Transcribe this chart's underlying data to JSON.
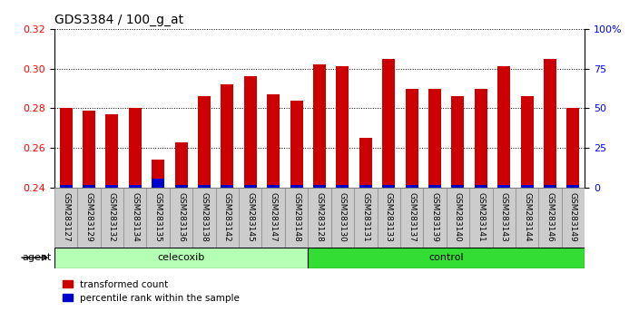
{
  "title": "GDS3384 / 100_g_at",
  "samples": [
    "GSM283127",
    "GSM283129",
    "GSM283132",
    "GSM283134",
    "GSM283135",
    "GSM283136",
    "GSM283138",
    "GSM283142",
    "GSM283145",
    "GSM283147",
    "GSM283148",
    "GSM283128",
    "GSM283130",
    "GSM283131",
    "GSM283133",
    "GSM283137",
    "GSM283139",
    "GSM283140",
    "GSM283141",
    "GSM283143",
    "GSM283144",
    "GSM283146",
    "GSM283149"
  ],
  "transformed_count": [
    0.28,
    0.279,
    0.277,
    0.28,
    0.254,
    0.263,
    0.286,
    0.292,
    0.296,
    0.287,
    0.284,
    0.302,
    0.301,
    0.265,
    0.305,
    0.29,
    0.29,
    0.286,
    0.29,
    0.301,
    0.286,
    0.305,
    0.28
  ],
  "percentile_rank_values": [
    2,
    2,
    2,
    2,
    6,
    2,
    2,
    2,
    2,
    2,
    2,
    2,
    2,
    2,
    2,
    2,
    2,
    2,
    2,
    2,
    2,
    2,
    2
  ],
  "celecoxib_count": 11,
  "control_count": 12,
  "ylim_left": [
    0.24,
    0.32
  ],
  "ylim_right": [
    0,
    100
  ],
  "yticks_left": [
    0.24,
    0.26,
    0.28,
    0.3,
    0.32
  ],
  "yticks_right": [
    0,
    25,
    50,
    75,
    100
  ],
  "bar_color_red": "#cc0000",
  "bar_color_blue": "#0000cc",
  "celecoxib_color": "#b3ffb3",
  "control_color": "#33dd33",
  "agent_label": "agent",
  "celecoxib_label": "celecoxib",
  "control_label": "control",
  "legend_red": "transformed count",
  "legend_blue": "percentile rank within the sample",
  "bar_width": 0.55,
  "bar_bottom": 0.24,
  "tick_bg_color": "#cccccc"
}
